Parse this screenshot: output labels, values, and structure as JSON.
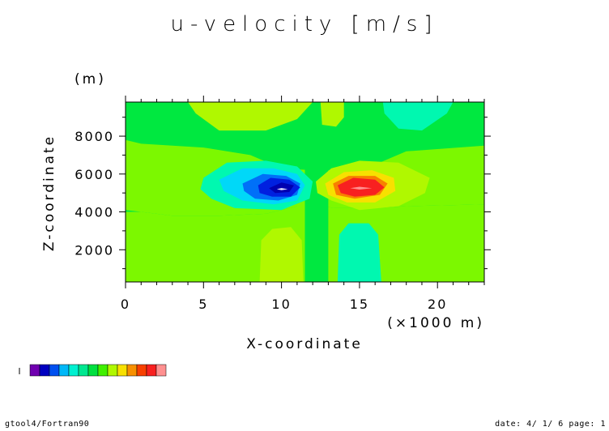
{
  "chart_data": {
    "type": "heatmap",
    "title": "u-velocity [m/s]",
    "xlabel": "X-coordinate",
    "ylabel": "Z-coordinate",
    "x_unit": "(×1000 m)",
    "y_unit": "(m)",
    "xlim": [
      0,
      23
    ],
    "ylim": [
      300,
      9800
    ],
    "x_ticks": [
      0,
      5,
      10,
      15,
      20
    ],
    "y_ticks": [
      2000,
      4000,
      6000,
      8000
    ],
    "x_tick_labels": [
      "0",
      "5",
      "10",
      "15",
      "20"
    ],
    "y_tick_labels": [
      "2000",
      "4000",
      "6000",
      "8000"
    ],
    "background_color": "#00e840",
    "regions": [
      {
        "id": "bg-green",
        "color": "#00e840",
        "points": [
          [
            0,
            300
          ],
          [
            23,
            300
          ],
          [
            23,
            9800
          ],
          [
            0,
            9800
          ]
        ]
      },
      {
        "id": "light-green-band",
        "color": "#7cf800",
        "points": [
          [
            0,
            300
          ],
          [
            23,
            300
          ],
          [
            23,
            4400
          ],
          [
            18,
            4300
          ],
          [
            16,
            4200
          ],
          [
            13.5,
            4200
          ],
          [
            12.5,
            4300
          ],
          [
            11,
            4300
          ],
          [
            9,
            3900
          ],
          [
            6,
            3800
          ],
          [
            3,
            3800
          ],
          [
            1,
            4000
          ],
          [
            0,
            4000
          ]
        ]
      },
      {
        "id": "light-green-top",
        "color": "#7cf800",
        "points": [
          [
            0,
            4100
          ],
          [
            1,
            4000
          ],
          [
            3,
            3800
          ],
          [
            6,
            3800
          ],
          [
            9,
            3900
          ],
          [
            11,
            4300
          ],
          [
            12.5,
            4300
          ],
          [
            13.5,
            4200
          ],
          [
            16,
            4200
          ],
          [
            18,
            4300
          ],
          [
            23,
            4400
          ],
          [
            23,
            7500
          ],
          [
            18,
            7200
          ],
          [
            16,
            6500
          ],
          [
            14,
            6200
          ],
          [
            12,
            6200
          ],
          [
            10,
            6300
          ],
          [
            8,
            7000
          ],
          [
            5,
            7400
          ],
          [
            1,
            7600
          ],
          [
            0,
            7800
          ]
        ]
      },
      {
        "id": "green-center-cross",
        "color": "#00e840",
        "points": [
          [
            11.5,
            300
          ],
          [
            13,
            300
          ],
          [
            13,
            9800
          ],
          [
            11.5,
            9800
          ]
        ]
      },
      {
        "id": "yellowgreen-topleft",
        "color": "#b0f800",
        "points": [
          [
            4,
            9800
          ],
          [
            12,
            9800
          ],
          [
            11,
            8900
          ],
          [
            9,
            8300
          ],
          [
            6,
            8300
          ],
          [
            4.5,
            9200
          ]
        ]
      },
      {
        "id": "yellowgreen-topright",
        "color": "#b0f800",
        "points": [
          [
            12.5,
            9800
          ],
          [
            14,
            9800
          ],
          [
            14,
            9000
          ],
          [
            13.5,
            8500
          ],
          [
            12.6,
            8600
          ]
        ]
      },
      {
        "id": "teal-topright",
        "color": "#00f8b0",
        "points": [
          [
            16.5,
            9800
          ],
          [
            21,
            9800
          ],
          [
            20.6,
            9200
          ],
          [
            19,
            8300
          ],
          [
            17.5,
            8400
          ],
          [
            16.6,
            9200
          ]
        ]
      },
      {
        "id": "yellowgreen-bottomleft",
        "color": "#b0f800",
        "points": [
          [
            8.6,
            300
          ],
          [
            11.4,
            300
          ],
          [
            11.3,
            2500
          ],
          [
            10.6,
            3200
          ],
          [
            9.4,
            3100
          ],
          [
            8.7,
            2500
          ]
        ]
      },
      {
        "id": "teal-bottomright",
        "color": "#00f8b0",
        "points": [
          [
            13.6,
            300
          ],
          [
            16.4,
            300
          ],
          [
            16.2,
            2800
          ],
          [
            15.6,
            3400
          ],
          [
            14.3,
            3400
          ],
          [
            13.7,
            2800
          ]
        ]
      },
      {
        "id": "neg-outer",
        "color": "#00f8b0",
        "points": [
          [
            5,
            5800
          ],
          [
            6.5,
            6600
          ],
          [
            9,
            6700
          ],
          [
            11,
            6400
          ],
          [
            12,
            5600
          ],
          [
            11.8,
            4700
          ],
          [
            10,
            4100
          ],
          [
            7,
            4200
          ],
          [
            5.5,
            4700
          ],
          [
            4.8,
            5200
          ]
        ]
      },
      {
        "id": "neg-1",
        "color": "#00d8f8",
        "points": [
          [
            6,
            5700
          ],
          [
            7.5,
            6300
          ],
          [
            9.5,
            6300
          ],
          [
            11,
            6000
          ],
          [
            11.5,
            5400
          ],
          [
            11,
            4600
          ],
          [
            9.5,
            4400
          ],
          [
            7.5,
            4600
          ],
          [
            6.3,
            5100
          ]
        ]
      },
      {
        "id": "neg-2",
        "color": "#0070f8",
        "points": [
          [
            7.5,
            5500
          ],
          [
            8.8,
            6000
          ],
          [
            10.3,
            5900
          ],
          [
            11.2,
            5500
          ],
          [
            11,
            4900
          ],
          [
            9.8,
            4600
          ],
          [
            8.3,
            4700
          ],
          [
            7.6,
            5100
          ]
        ]
      },
      {
        "id": "neg-3",
        "color": "#0020e0",
        "points": [
          [
            8.5,
            5400
          ],
          [
            9.3,
            5800
          ],
          [
            10.5,
            5700
          ],
          [
            11.2,
            5300
          ],
          [
            10.6,
            4800
          ],
          [
            9.4,
            4800
          ],
          [
            8.6,
            5000
          ]
        ]
      },
      {
        "id": "neg-4",
        "color": "#0000b0",
        "points": [
          [
            9.2,
            5250
          ],
          [
            10.0,
            5550
          ],
          [
            10.8,
            5400
          ],
          [
            10.5,
            5050
          ],
          [
            9.6,
            5000
          ]
        ]
      },
      {
        "id": "neg-core",
        "color": "#e8e8ff",
        "points": [
          [
            9.7,
            5200
          ],
          [
            10,
            5260
          ],
          [
            10.4,
            5200
          ],
          [
            10,
            5150
          ]
        ]
      },
      {
        "id": "pos-outer",
        "color": "#b0f800",
        "points": [
          [
            12.2,
            5600
          ],
          [
            13.2,
            6300
          ],
          [
            15,
            6700
          ],
          [
            17.5,
            6600
          ],
          [
            19.5,
            5800
          ],
          [
            19.2,
            5000
          ],
          [
            17.5,
            4300
          ],
          [
            15,
            4100
          ],
          [
            13.2,
            4600
          ],
          [
            12.3,
            5000
          ]
        ]
      },
      {
        "id": "pos-1",
        "color": "#f8e000",
        "points": [
          [
            12.8,
            5500
          ],
          [
            14,
            6100
          ],
          [
            15.8,
            6200
          ],
          [
            17.2,
            5800
          ],
          [
            17.3,
            5100
          ],
          [
            16,
            4500
          ],
          [
            14.2,
            4500
          ],
          [
            13,
            4900
          ]
        ]
      },
      {
        "id": "pos-2",
        "color": "#f88000",
        "points": [
          [
            13.3,
            5500
          ],
          [
            14.3,
            5900
          ],
          [
            16,
            5900
          ],
          [
            16.8,
            5500
          ],
          [
            16.3,
            4900
          ],
          [
            14.7,
            4700
          ],
          [
            13.5,
            4900
          ]
        ]
      },
      {
        "id": "pos-3",
        "color": "#f82020",
        "points": [
          [
            13.6,
            5400
          ],
          [
            14.6,
            5800
          ],
          [
            16,
            5700
          ],
          [
            16.6,
            5300
          ],
          [
            16,
            4900
          ],
          [
            14.7,
            4800
          ],
          [
            13.8,
            5000
          ]
        ]
      },
      {
        "id": "pos-core",
        "color": "#ff9090",
        "points": [
          [
            14.4,
            5250
          ],
          [
            15,
            5330
          ],
          [
            15.8,
            5250
          ],
          [
            15,
            5180
          ]
        ]
      }
    ],
    "colorbar": [
      "#7000b0",
      "#0000c0",
      "#0050f0",
      "#00b8f8",
      "#00f0d0",
      "#00e890",
      "#00e040",
      "#40f000",
      "#b0f800",
      "#f8e000",
      "#f89000",
      "#f84000",
      "#f82020",
      "#ff9090"
    ]
  },
  "footer": {
    "left": "gtool4/Fortran90",
    "right": "date: 4/ 1/ 6 page: 1"
  }
}
